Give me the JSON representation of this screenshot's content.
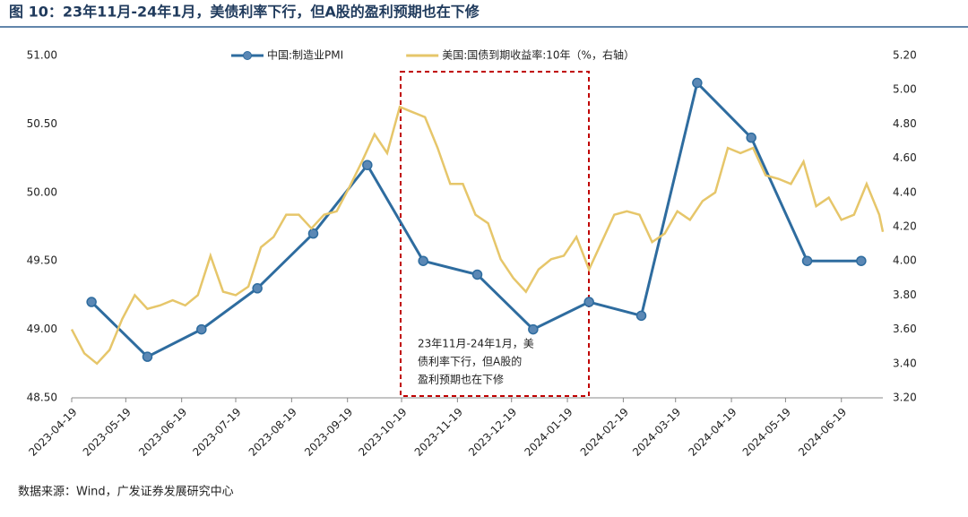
{
  "title": "图 10：23年11月-24年1月，美债利率下行，但A股的盈利预期也在下修",
  "source": "数据来源：Wind，广发证券发展研究中心",
  "chart_data": {
    "type": "line",
    "annotation": [
      "23年11月-24年1月，美",
      "债利率下行，但A股的",
      "盈利预期也在下修"
    ],
    "xlim": [
      "2023-04-19",
      "2024-07-12"
    ],
    "xticks": [
      "2023-04-19",
      "2023-05-19",
      "2023-06-19",
      "2023-07-19",
      "2023-08-19",
      "2023-09-19",
      "2023-10-19",
      "2023-11-19",
      "2023-12-19",
      "2024-01-19",
      "2024-02-19",
      "2024-03-19",
      "2024-04-19",
      "2024-05-19",
      "2024-06-19"
    ],
    "ylim": [
      48.5,
      51
    ],
    "yticks": [
      {
        "value": 48.5,
        "label": "48.50"
      },
      {
        "value": 49,
        "label": "49.00"
      },
      {
        "value": 49.5,
        "label": "49.50"
      },
      {
        "value": 50,
        "label": "50.00"
      },
      {
        "value": 50.5,
        "label": "50.50"
      },
      {
        "value": 51,
        "label": "51.00"
      }
    ],
    "y2lim": [
      3.2,
      5.2
    ],
    "y2ticks": [
      {
        "value": 3.2,
        "label": "3.20"
      },
      {
        "value": 3.4,
        "label": "3.40"
      },
      {
        "value": 3.6,
        "label": "3.60"
      },
      {
        "value": 3.8,
        "label": "3.80"
      },
      {
        "value": 4,
        "label": "4.00"
      },
      {
        "value": 4.2,
        "label": "4.20"
      },
      {
        "value": 4.4,
        "label": "4.40"
      },
      {
        "value": 4.6,
        "label": "4.60"
      },
      {
        "value": 4.8,
        "label": "4.80"
      },
      {
        "value": 5,
        "label": "5.00"
      },
      {
        "value": 5.2,
        "label": "5.20"
      }
    ],
    "series": [
      {
        "name": "中国:制造业PMI",
        "color": "#2e6c9f",
        "markers": true,
        "x": [
          "2023-04-30",
          "2023-05-31",
          "2023-06-30",
          "2023-07-31",
          "2023-08-31",
          "2023-09-30",
          "2023-10-31",
          "2023-11-30",
          "2023-12-31",
          "2024-01-31",
          "2024-02-29",
          "2024-03-31",
          "2024-04-30",
          "2024-05-31",
          "2024-06-30"
        ],
        "values": [
          49.2,
          48.8,
          49.0,
          49.3,
          49.7,
          50.2,
          49.5,
          49.4,
          49.0,
          49.2,
          49.1,
          50.8,
          50.4,
          49.5,
          49.5
        ]
      },
      {
        "name": "美国:国债到期收益率:10年（%，右轴）",
        "color": "#e6c66a",
        "axis": "y2",
        "markers": false,
        "x": [
          "2023-04-19",
          "2023-04-26",
          "2023-05-03",
          "2023-05-10",
          "2023-05-17",
          "2023-05-24",
          "2023-05-31",
          "2023-06-07",
          "2023-06-14",
          "2023-06-21",
          "2023-06-28",
          "2023-07-05",
          "2023-07-12",
          "2023-07-19",
          "2023-07-26",
          "2023-08-02",
          "2023-08-09",
          "2023-08-16",
          "2023-08-23",
          "2023-08-30",
          "2023-09-06",
          "2023-09-13",
          "2023-09-20",
          "2023-09-27",
          "2023-10-04",
          "2023-10-11",
          "2023-10-18",
          "2023-10-25",
          "2023-11-01",
          "2023-11-08",
          "2023-11-15",
          "2023-11-22",
          "2023-11-29",
          "2023-12-06",
          "2023-12-13",
          "2023-12-20",
          "2023-12-27",
          "2024-01-03",
          "2024-01-10",
          "2024-01-17",
          "2024-01-24",
          "2024-01-31",
          "2024-02-07",
          "2024-02-14",
          "2024-02-21",
          "2024-02-28",
          "2024-03-06",
          "2024-03-13",
          "2024-03-20",
          "2024-03-27",
          "2024-04-03",
          "2024-04-10",
          "2024-04-17",
          "2024-04-24",
          "2024-05-01",
          "2024-05-08",
          "2024-05-15",
          "2024-05-22",
          "2024-05-29",
          "2024-06-05",
          "2024-06-12",
          "2024-06-19",
          "2024-06-26",
          "2024-07-03",
          "2024-07-10",
          "2024-07-12"
        ],
        "values": [
          3.6,
          3.46,
          3.4,
          3.48,
          3.66,
          3.8,
          3.72,
          3.74,
          3.77,
          3.74,
          3.8,
          4.03,
          3.82,
          3.8,
          3.85,
          4.08,
          4.14,
          4.27,
          4.27,
          4.19,
          4.27,
          4.29,
          4.43,
          4.58,
          4.74,
          4.63,
          4.9,
          4.87,
          4.84,
          4.66,
          4.45,
          4.45,
          4.27,
          4.22,
          4.01,
          3.9,
          3.82,
          3.95,
          4.01,
          4.03,
          4.14,
          3.95,
          4.11,
          4.27,
          4.29,
          4.27,
          4.11,
          4.16,
          4.29,
          4.24,
          4.35,
          4.4,
          4.66,
          4.63,
          4.66,
          4.5,
          4.48,
          4.45,
          4.58,
          4.32,
          4.37,
          4.24,
          4.27,
          4.45,
          4.27,
          4.17
        ]
      }
    ]
  }
}
